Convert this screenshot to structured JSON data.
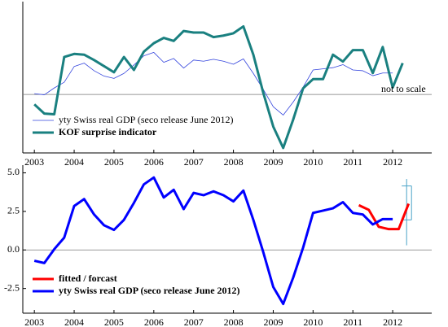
{
  "chart_data": [
    {
      "type": "line",
      "annotation": "not to scale",
      "xlim": [
        2002.71,
        2012.98
      ],
      "xticks": [
        2003,
        2004,
        2005,
        2006,
        2007,
        2008,
        2009,
        2010,
        2011,
        2012
      ],
      "ylim": [
        -8.45,
        11.34
      ],
      "reference_line": -0.8,
      "series": [
        {
          "name": "yty Swiss real GDP (seco release June 2012)",
          "color": "#3344dd",
          "width": 0.8,
          "x": [
            2003,
            2003.25,
            2003.5,
            2003.75,
            2004,
            2004.25,
            2004.5,
            2004.75,
            2005,
            2005.25,
            2005.5,
            2005.75,
            2006,
            2006.25,
            2006.5,
            2006.75,
            2007,
            2007.25,
            2007.5,
            2007.75,
            2008,
            2008.25,
            2008.5,
            2008.75,
            2009,
            2009.25,
            2009.5,
            2009.75,
            2010,
            2010.25,
            2010.5,
            2010.75,
            2011,
            2011.25,
            2011.5,
            2011.75,
            2012
          ],
          "values": [
            -0.7,
            -0.85,
            0.05,
            0.8,
            2.85,
            3.3,
            2.3,
            1.6,
            1.3,
            1.95,
            3.05,
            4.25,
            4.7,
            3.4,
            3.9,
            2.65,
            3.7,
            3.55,
            3.8,
            3.55,
            3.15,
            3.85,
            1.95,
            -0.15,
            -2.4,
            -3.5,
            -1.8,
            0.15,
            2.4,
            2.55,
            2.7,
            3.1,
            2.4,
            2.3,
            1.65,
            2.0,
            2.0
          ]
        },
        {
          "name": "KOF surprise indicator",
          "color": "#1a8080",
          "width": 3,
          "x": [
            2003,
            2003.25,
            2003.5,
            2003.75,
            2004,
            2004.25,
            2004.5,
            2004.75,
            2005,
            2005.25,
            2005.5,
            2005.75,
            2006,
            2006.25,
            2006.5,
            2006.75,
            2007,
            2007.25,
            2007.5,
            2007.75,
            2008,
            2008.25,
            2008.5,
            2008.75,
            2009,
            2009.25,
            2009.5,
            2009.75,
            2010,
            2010.25,
            2010.5,
            2010.75,
            2011,
            2011.25,
            2011.5,
            2011.75,
            2012,
            2012.25
          ],
          "values": [
            -2.1,
            -3.3,
            -3.4,
            4.1,
            4.5,
            4.4,
            3.7,
            2.9,
            2.1,
            4.1,
            2.4,
            4.8,
            5.9,
            6.6,
            6.2,
            7.5,
            7.3,
            7.3,
            6.7,
            6.9,
            7.2,
            8.1,
            4.4,
            -0.6,
            -5.0,
            -7.8,
            -4.1,
            0.0,
            1.2,
            1.2,
            4.4,
            3.5,
            5.0,
            5.0,
            2.0,
            5.4,
            0.1,
            3.3
          ]
        }
      ]
    },
    {
      "type": "line",
      "xlim": [
        2002.71,
        2012.98
      ],
      "xticks": [
        2003,
        2004,
        2005,
        2006,
        2007,
        2008,
        2009,
        2010,
        2011,
        2012
      ],
      "ylim": [
        -4.1,
        5.5
      ],
      "yticks": [
        {
          "value": -2.5,
          "label": "-2.5"
        },
        {
          "value": 0,
          "label": "0.0"
        },
        {
          "value": 2.5,
          "label": "2.5"
        },
        {
          "value": 5,
          "label": "5.0"
        }
      ],
      "reference_line": 0,
      "series": [
        {
          "name": "fitted / forcast",
          "color": "#ff0000",
          "width": 3,
          "x": [
            2011.15,
            2011.4,
            2011.65,
            2011.9,
            2012.15,
            2012.4
          ],
          "values": [
            2.9,
            2.6,
            1.5,
            1.35,
            1.35,
            3.0
          ]
        },
        {
          "name": "yty Swiss real GDP (seco release June 2012)",
          "color": "#0000ff",
          "width": 3,
          "x": [
            2003,
            2003.25,
            2003.5,
            2003.75,
            2004,
            2004.25,
            2004.5,
            2004.75,
            2005,
            2005.25,
            2005.5,
            2005.75,
            2006,
            2006.25,
            2006.5,
            2006.75,
            2007,
            2007.25,
            2007.5,
            2007.75,
            2008,
            2008.25,
            2008.5,
            2008.75,
            2009,
            2009.25,
            2009.5,
            2009.75,
            2010,
            2010.25,
            2010.5,
            2010.75,
            2011,
            2011.25,
            2011.5,
            2011.75,
            2012
          ],
          "values": [
            -0.7,
            -0.85,
            0.05,
            0.8,
            2.85,
            3.3,
            2.3,
            1.6,
            1.3,
            1.95,
            3.05,
            4.25,
            4.7,
            3.4,
            3.9,
            2.65,
            3.7,
            3.55,
            3.8,
            3.55,
            3.15,
            3.85,
            1.95,
            -0.15,
            -2.4,
            -3.5,
            -1.8,
            0.15,
            2.4,
            2.55,
            2.7,
            3.1,
            2.4,
            2.3,
            1.65,
            2.0,
            2.0
          ]
        }
      ],
      "error_bar": {
        "x": 2012.35,
        "color": "#4aa3c8",
        "low": 1.95,
        "high": 4.15,
        "outer_low": 0.3,
        "outer_high": 4.6
      }
    }
  ]
}
